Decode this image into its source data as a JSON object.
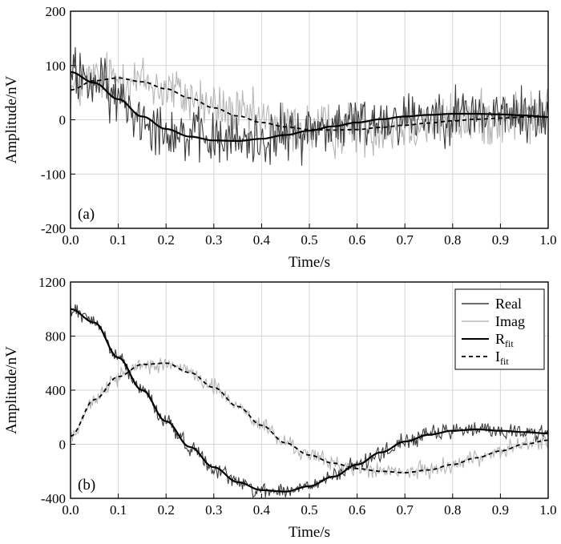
{
  "colors": {
    "real": "#3d3d3d",
    "imag": "#b7b7b7",
    "fit": "#000000",
    "grid": "#d6d6d6"
  },
  "chart_data": [
    {
      "type": "line",
      "panel_label": "(a)",
      "xlabel": "Time/s",
      "ylabel": "Amplitude/nV",
      "xlim": [
        0.0,
        1.0
      ],
      "ylim": [
        -200,
        200
      ],
      "xticks": [
        "0.0",
        "0.1",
        "0.2",
        "0.3",
        "0.4",
        "0.5",
        "0.6",
        "0.7",
        "0.8",
        "0.9",
        "1.0"
      ],
      "yticks": [
        "200",
        "100",
        "0",
        "-100",
        "-200"
      ],
      "grid": true,
      "noise_amplitude": 38,
      "series": [
        {
          "name": "Real",
          "style": "noisy",
          "x": [
            0.0,
            0.05,
            0.1,
            0.15,
            0.2,
            0.25,
            0.3,
            0.35,
            0.4,
            0.45,
            0.5,
            0.55,
            0.6,
            0.65,
            0.7,
            0.75,
            0.8,
            0.85,
            0.9,
            0.95,
            1.0
          ],
          "y": [
            88,
            68,
            38,
            6,
            -17,
            -31,
            -38,
            -39,
            -35,
            -28,
            -20,
            -12,
            -5,
            1,
            6,
            9,
            11,
            11,
            10,
            8,
            5
          ]
        },
        {
          "name": "Imag",
          "style": "noisy",
          "x": [
            0.0,
            0.05,
            0.1,
            0.15,
            0.2,
            0.25,
            0.3,
            0.35,
            0.4,
            0.45,
            0.5,
            0.55,
            0.6,
            0.65,
            0.7,
            0.75,
            0.8,
            0.85,
            0.9,
            0.95,
            1.0
          ],
          "y": [
            55,
            72,
            77,
            70,
            57,
            40,
            22,
            7,
            -5,
            -13,
            -18,
            -19,
            -18,
            -14,
            -10,
            -6,
            -2,
            1,
            3,
            5,
            6
          ]
        },
        {
          "name": "R_fit",
          "style": "solid",
          "x": [
            0.0,
            0.05,
            0.1,
            0.15,
            0.2,
            0.25,
            0.3,
            0.35,
            0.4,
            0.45,
            0.5,
            0.55,
            0.6,
            0.65,
            0.7,
            0.75,
            0.8,
            0.85,
            0.9,
            0.95,
            1.0
          ],
          "y": [
            88,
            68,
            38,
            6,
            -17,
            -31,
            -38,
            -39,
            -35,
            -28,
            -20,
            -12,
            -5,
            1,
            6,
            9,
            11,
            11,
            10,
            8,
            5
          ]
        },
        {
          "name": "I_fit",
          "style": "dashed",
          "x": [
            0.0,
            0.05,
            0.1,
            0.15,
            0.2,
            0.25,
            0.3,
            0.35,
            0.4,
            0.45,
            0.5,
            0.55,
            0.6,
            0.65,
            0.7,
            0.75,
            0.8,
            0.85,
            0.9,
            0.95,
            1.0
          ],
          "y": [
            55,
            72,
            77,
            70,
            57,
            40,
            22,
            7,
            -5,
            -13,
            -18,
            -19,
            -18,
            -14,
            -10,
            -6,
            -2,
            1,
            3,
            5,
            6
          ]
        }
      ]
    },
    {
      "type": "line",
      "panel_label": "(b)",
      "xlabel": "Time/s",
      "ylabel": "Amplitude/nV",
      "xlim": [
        0.0,
        1.0
      ],
      "ylim": [
        -400,
        1200
      ],
      "xticks": [
        "0.0",
        "0.1",
        "0.2",
        "0.3",
        "0.4",
        "0.5",
        "0.6",
        "0.7",
        "0.8",
        "0.9",
        "1.0"
      ],
      "yticks": [
        "1200",
        "800",
        "400",
        "0",
        "-400"
      ],
      "grid": true,
      "noise_amplitude": 45,
      "legend": {
        "placement": "top-right",
        "entries": [
          {
            "label": "Real",
            "sub": "",
            "style": "real"
          },
          {
            "label": "Imag",
            "sub": "",
            "style": "imag"
          },
          {
            "label": "R",
            "sub": "fit",
            "style": "solid"
          },
          {
            "label": "I",
            "sub": "fit",
            "style": "dashed"
          }
        ]
      },
      "series": [
        {
          "name": "Real",
          "style": "noisy",
          "x": [
            0.0,
            0.05,
            0.1,
            0.15,
            0.2,
            0.25,
            0.3,
            0.35,
            0.4,
            0.45,
            0.5,
            0.55,
            0.6,
            0.65,
            0.7,
            0.75,
            0.8,
            0.85,
            0.9,
            0.95,
            1.0
          ],
          "y": [
            1000,
            900,
            640,
            400,
            170,
            -20,
            -170,
            -280,
            -340,
            -350,
            -310,
            -240,
            -150,
            -60,
            20,
            70,
            100,
            110,
            100,
            90,
            80
          ]
        },
        {
          "name": "Imag",
          "style": "noisy",
          "x": [
            0.0,
            0.05,
            0.1,
            0.15,
            0.2,
            0.25,
            0.3,
            0.35,
            0.4,
            0.45,
            0.5,
            0.55,
            0.6,
            0.65,
            0.7,
            0.75,
            0.8,
            0.85,
            0.9,
            0.95,
            1.0
          ],
          "y": [
            60,
            330,
            500,
            590,
            600,
            530,
            420,
            280,
            140,
            10,
            -80,
            -140,
            -180,
            -200,
            -210,
            -190,
            -150,
            -100,
            -50,
            0,
            30
          ]
        },
        {
          "name": "R_fit",
          "style": "solid",
          "x": [
            0.0,
            0.05,
            0.1,
            0.15,
            0.2,
            0.25,
            0.3,
            0.35,
            0.4,
            0.45,
            0.5,
            0.55,
            0.6,
            0.65,
            0.7,
            0.75,
            0.8,
            0.85,
            0.9,
            0.95,
            1.0
          ],
          "y": [
            1000,
            900,
            640,
            400,
            170,
            -20,
            -170,
            -280,
            -340,
            -350,
            -310,
            -240,
            -150,
            -60,
            20,
            70,
            100,
            110,
            100,
            90,
            80
          ]
        },
        {
          "name": "I_fit",
          "style": "dashed",
          "x": [
            0.0,
            0.05,
            0.1,
            0.15,
            0.2,
            0.25,
            0.3,
            0.35,
            0.4,
            0.45,
            0.5,
            0.55,
            0.6,
            0.65,
            0.7,
            0.75,
            0.8,
            0.85,
            0.9,
            0.95,
            1.0
          ],
          "y": [
            60,
            330,
            500,
            590,
            600,
            530,
            420,
            280,
            140,
            10,
            -80,
            -140,
            -180,
            -200,
            -210,
            -190,
            -150,
            -100,
            -50,
            0,
            30
          ]
        }
      ]
    }
  ]
}
